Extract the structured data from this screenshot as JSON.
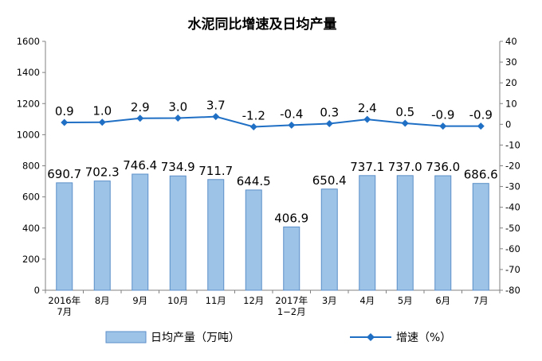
{
  "chart_data": {
    "type": "bar+line",
    "title": "水泥同比增速及日均产量",
    "categories": [
      [
        "2016年",
        "7月"
      ],
      [
        "8月"
      ],
      [
        "9月"
      ],
      [
        "10月"
      ],
      [
        "11月"
      ],
      [
        "12月"
      ],
      [
        "2017年",
        "1−2月"
      ],
      [
        "3月"
      ],
      [
        "4月"
      ],
      [
        "5月"
      ],
      [
        "6月"
      ],
      [
        "7月"
      ]
    ],
    "series": [
      {
        "name": "日均产量（万吨）",
        "type": "bar",
        "axis": "left",
        "values": [
          690.7,
          702.3,
          746.4,
          734.9,
          711.7,
          644.5,
          406.9,
          650.4,
          737.1,
          737.0,
          736.0,
          686.6
        ],
        "labels": [
          "690.7",
          "702.3",
          "746.4",
          "734.9",
          "711.7",
          "644.5",
          "406.9",
          "650.4",
          "737.1",
          "737.0",
          "736.0",
          "686.6"
        ],
        "color": "#9DC3E6"
      },
      {
        "name": "增速（%）",
        "type": "line",
        "axis": "right",
        "values": [
          0.9,
          1.0,
          2.9,
          3.0,
          3.7,
          -1.2,
          -0.4,
          0.3,
          2.4,
          0.5,
          -0.9,
          -0.9
        ],
        "labels": [
          "0.9",
          "1.0",
          "2.9",
          "3.0",
          "3.7",
          "-1.2",
          "-0.4",
          "0.3",
          "2.4",
          "0.5",
          "-0.9",
          "-0.9"
        ],
        "color": "#1F6FC5"
      }
    ],
    "yleft": {
      "min": 0,
      "max": 1600,
      "step": 200,
      "ticks": [
        "0",
        "200",
        "400",
        "600",
        "800",
        "1000",
        "1200",
        "1400",
        "1600"
      ]
    },
    "yright": {
      "min": -80,
      "max": 40,
      "step": 10,
      "ticks": [
        "-80",
        "-70",
        "-60",
        "-50",
        "-40",
        "-30",
        "-20",
        "-10",
        "0",
        "10",
        "20",
        "30",
        "40"
      ]
    },
    "grid": false,
    "legend_position": "bottom"
  }
}
